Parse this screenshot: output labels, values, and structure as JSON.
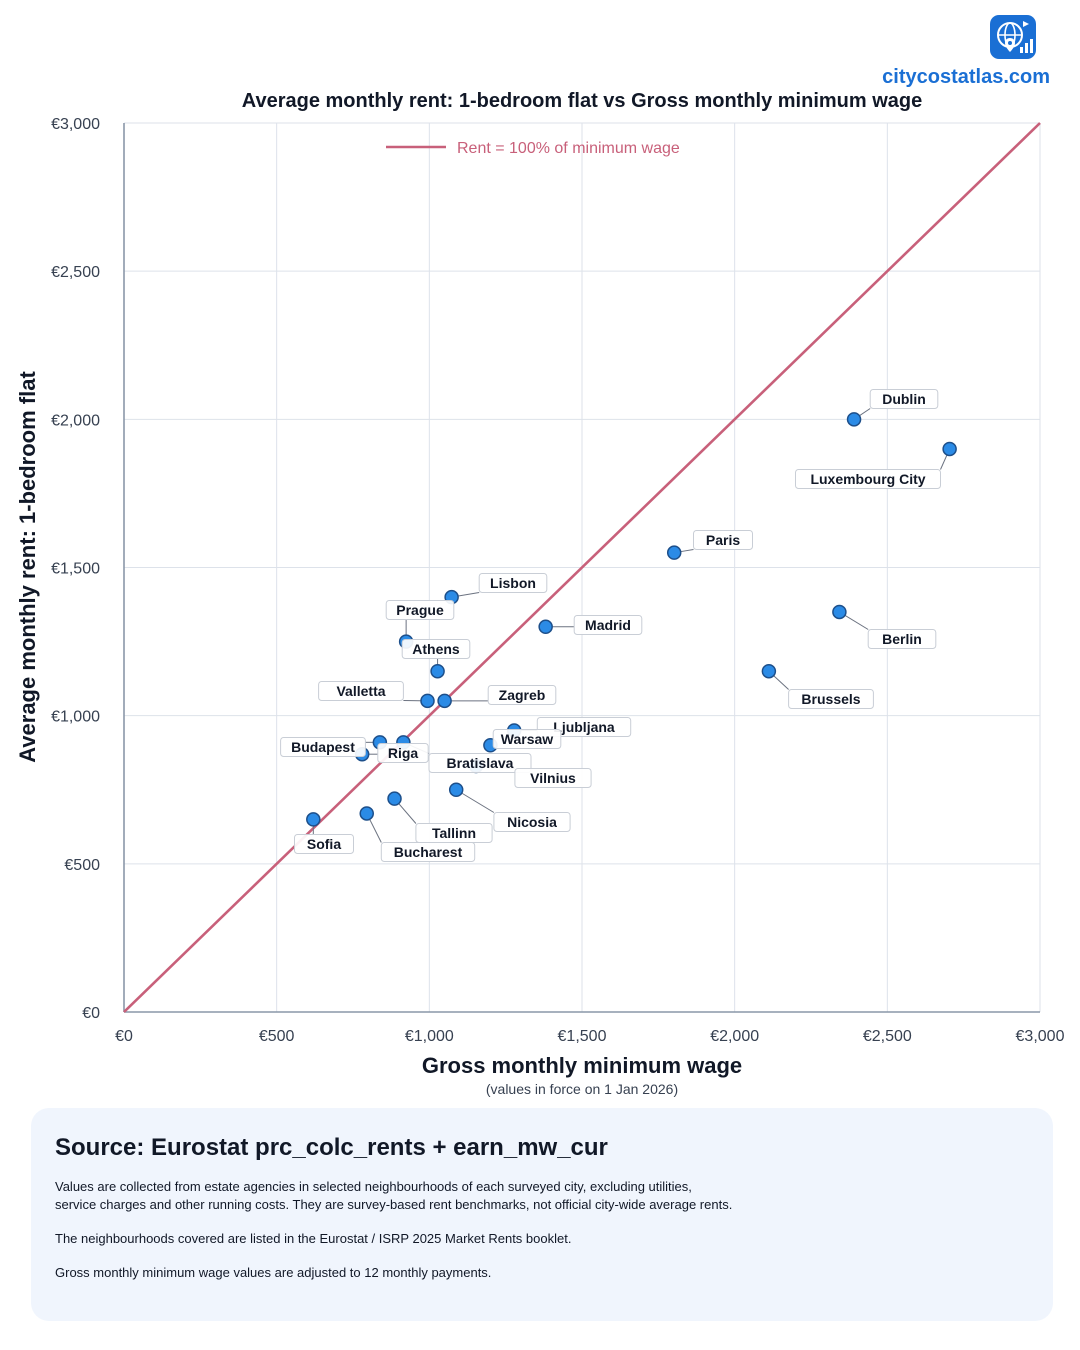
{
  "brand": {
    "logo_icon": "globe-location-chart-icon",
    "url": "citycostatlas.com",
    "accent_color": "#1a6fd4"
  },
  "chart_data": {
    "type": "scatter",
    "title": "Average monthly rent: 1-bedroom flat vs Gross monthly minimum wage",
    "xlabel": "Gross monthly minimum wage",
    "xlabel_note": "(values in force on 1 Jan 2026)",
    "ylabel": "Average monthly rent: 1-bedroom flat",
    "xlim": [
      0,
      3000
    ],
    "ylim": [
      0,
      3000
    ],
    "x_ticks": [
      0,
      500,
      1000,
      1500,
      2000,
      2500,
      3000
    ],
    "y_ticks": [
      0,
      500,
      1000,
      1500,
      2000,
      2500,
      3000
    ],
    "x_tick_labels": [
      "€0",
      "€500",
      "€1,000",
      "€1,500",
      "€2,000",
      "€2,500",
      "€3,000"
    ],
    "y_tick_labels": [
      "€0",
      "€500",
      "€1,000",
      "€1,500",
      "€2,000",
      "€2,500",
      "€3,000"
    ],
    "grid": true,
    "point_color": "#2b8be6",
    "point_edge_color": "#1d4f8a",
    "reference_line": {
      "label": "Rent = 100% of minimum wage",
      "slope": 1,
      "color": "#c8607a"
    },
    "legend_position": "top-center",
    "points": [
      {
        "city": "Dublin",
        "x": 2391,
        "y": 2000
      },
      {
        "city": "Luxembourg City",
        "x": 2704,
        "y": 1900
      },
      {
        "city": "Paris",
        "x": 1802,
        "y": 1550
      },
      {
        "city": "Berlin",
        "x": 2343,
        "y": 1350
      },
      {
        "city": "Brussels",
        "x": 2112,
        "y": 1150
      },
      {
        "city": "Lisbon",
        "x": 1073,
        "y": 1400
      },
      {
        "city": "Prague",
        "x": 924,
        "y": 1250
      },
      {
        "city": "Madrid",
        "x": 1381,
        "y": 1300
      },
      {
        "city": "Athens",
        "x": 1027,
        "y": 1150
      },
      {
        "city": "Valletta",
        "x": 994,
        "y": 1050
      },
      {
        "city": "Zagreb",
        "x": 1050,
        "y": 1050
      },
      {
        "city": "Ljubljana",
        "x": 1278,
        "y": 950
      },
      {
        "city": "Warsaw",
        "x": 1200,
        "y": 900
      },
      {
        "city": "Budapest",
        "x": 838,
        "y": 910
      },
      {
        "city": "Riga",
        "x": 780,
        "y": 870
      },
      {
        "city": "Bratislava",
        "x": 915,
        "y": 910
      },
      {
        "city": "Vilnius",
        "x": 1153,
        "y": 830
      },
      {
        "city": "Nicosia",
        "x": 1088,
        "y": 750
      },
      {
        "city": "Tallinn",
        "x": 886,
        "y": 720
      },
      {
        "city": "Bucharest",
        "x": 795,
        "y": 670
      },
      {
        "city": "Sofia",
        "x": 620,
        "y": 650
      }
    ]
  },
  "source": {
    "title": "Source: Eurostat prc_colc_rents + earn_mw_cur",
    "paragraphs": [
      "Values are collected from estate agencies in selected neighbourhoods of each surveyed city, excluding utilities,\nservice charges and other running costs. They are survey-based rent benchmarks, not official city-wide average rents.",
      "The neighbourhoods covered are listed in the Eurostat / ISRP 2025 Market Rents booklet.",
      "Gross monthly minimum wage values are adjusted to 12 monthly payments."
    ]
  }
}
